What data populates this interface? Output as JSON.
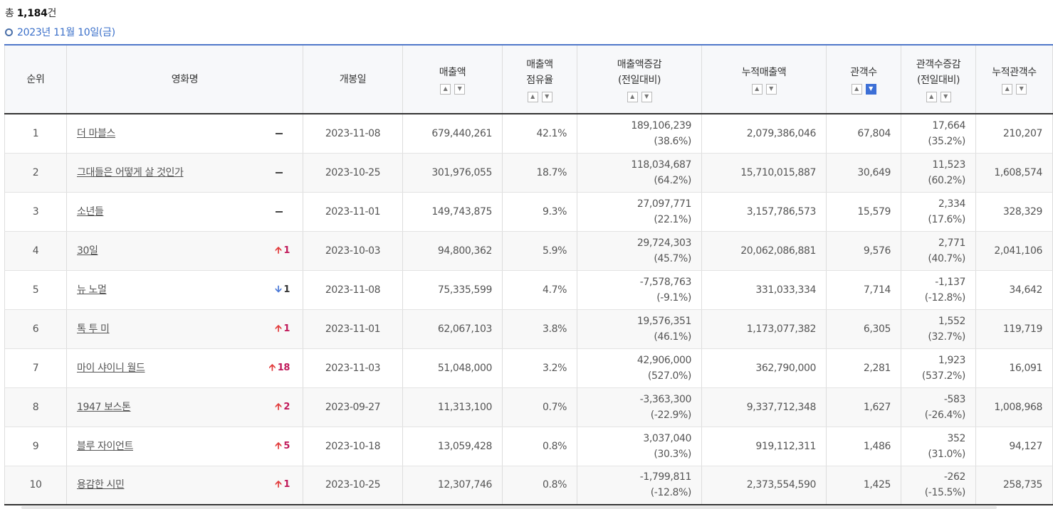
{
  "summary": {
    "prefix": "총 ",
    "count": "1,184",
    "suffix": "건"
  },
  "date_label": "2023년 11월 10일(금)",
  "headers": {
    "rank": "순위",
    "title": "영화명",
    "release": "개봉일",
    "sales": "매출액",
    "share_1": "매출액",
    "share_2": "점유율",
    "sales_change_1": "매출액증감",
    "sales_change_2": "(전일대비)",
    "cum_sales": "누적매출액",
    "audience": "관객수",
    "aud_change_1": "관객수증감",
    "aud_change_2": "(전일대비)",
    "cum_audience": "누적관객수"
  },
  "rows": [
    {
      "rank": "1",
      "title": "더 마블스",
      "change_dir": "same",
      "change_val": "",
      "release": "2023-11-08",
      "sales": "679,440,261",
      "share": "42.1%",
      "sales_diff": "189,106,239",
      "sales_diff_pct": "(38.6%)",
      "cum_sales": "2,079,386,046",
      "audience": "67,804",
      "aud_diff": "17,664",
      "aud_diff_pct": "(35.2%)",
      "cum_audience": "210,207"
    },
    {
      "rank": "2",
      "title": "그대들은 어떻게 살 것인가",
      "change_dir": "same",
      "change_val": "",
      "release": "2023-10-25",
      "sales": "301,976,055",
      "share": "18.7%",
      "sales_diff": "118,034,687",
      "sales_diff_pct": "(64.2%)",
      "cum_sales": "15,710,015,887",
      "audience": "30,649",
      "aud_diff": "11,523",
      "aud_diff_pct": "(60.2%)",
      "cum_audience": "1,608,574"
    },
    {
      "rank": "3",
      "title": "소년들",
      "change_dir": "same",
      "change_val": "",
      "release": "2023-11-01",
      "sales": "149,743,875",
      "share": "9.3%",
      "sales_diff": "27,097,771",
      "sales_diff_pct": "(22.1%)",
      "cum_sales": "3,157,786,573",
      "audience": "15,579",
      "aud_diff": "2,334",
      "aud_diff_pct": "(17.6%)",
      "cum_audience": "328,329"
    },
    {
      "rank": "4",
      "title": "30일",
      "change_dir": "up",
      "change_val": "1",
      "release": "2023-10-03",
      "sales": "94,800,362",
      "share": "5.9%",
      "sales_diff": "29,724,303",
      "sales_diff_pct": "(45.7%)",
      "cum_sales": "20,062,086,881",
      "audience": "9,576",
      "aud_diff": "2,771",
      "aud_diff_pct": "(40.7%)",
      "cum_audience": "2,041,106"
    },
    {
      "rank": "5",
      "title": "뉴 노멀",
      "change_dir": "down",
      "change_val": "1",
      "release": "2023-11-08",
      "sales": "75,335,599",
      "share": "4.7%",
      "sales_diff": "-7,578,763",
      "sales_diff_pct": "(-9.1%)",
      "cum_sales": "331,033,334",
      "audience": "7,714",
      "aud_diff": "-1,137",
      "aud_diff_pct": "(-12.8%)",
      "cum_audience": "34,642"
    },
    {
      "rank": "6",
      "title": "톡 투 미",
      "change_dir": "up",
      "change_val": "1",
      "release": "2023-11-01",
      "sales": "62,067,103",
      "share": "3.8%",
      "sales_diff": "19,576,351",
      "sales_diff_pct": "(46.1%)",
      "cum_sales": "1,173,077,382",
      "audience": "6,305",
      "aud_diff": "1,552",
      "aud_diff_pct": "(32.7%)",
      "cum_audience": "119,719"
    },
    {
      "rank": "7",
      "title": "마이 샤이니 월드",
      "change_dir": "up",
      "change_val": "18",
      "release": "2023-11-03",
      "sales": "51,048,000",
      "share": "3.2%",
      "sales_diff": "42,906,000",
      "sales_diff_pct": "(527.0%)",
      "cum_sales": "362,790,000",
      "audience": "2,281",
      "aud_diff": "1,923",
      "aud_diff_pct": "(537.2%)",
      "cum_audience": "16,091"
    },
    {
      "rank": "8",
      "title": "1947 보스톤",
      "change_dir": "up",
      "change_val": "2",
      "release": "2023-09-27",
      "sales": "11,313,100",
      "share": "0.7%",
      "sales_diff": "-3,363,300",
      "sales_diff_pct": "(-22.9%)",
      "cum_sales": "9,337,712,348",
      "audience": "1,627",
      "aud_diff": "-583",
      "aud_diff_pct": "(-26.4%)",
      "cum_audience": "1,008,968"
    },
    {
      "rank": "9",
      "title": "블루 자이언트",
      "change_dir": "up",
      "change_val": "5",
      "release": "2023-10-18",
      "sales": "13,059,428",
      "share": "0.8%",
      "sales_diff": "3,037,040",
      "sales_diff_pct": "(30.3%)",
      "cum_sales": "919,112,311",
      "audience": "1,486",
      "aud_diff": "352",
      "aud_diff_pct": "(31.0%)",
      "cum_audience": "94,127"
    },
    {
      "rank": "10",
      "title": "용감한 시민",
      "change_dir": "up",
      "change_val": "1",
      "release": "2023-10-25",
      "sales": "12,307,746",
      "share": "0.8%",
      "sales_diff": "-1,799,811",
      "sales_diff_pct": "(-12.8%)",
      "cum_sales": "2,373,554,590",
      "audience": "1,425",
      "aud_diff": "-262",
      "aud_diff_pct": "(-15.5%)",
      "cum_audience": "258,735"
    }
  ],
  "sort_icons": {
    "asc": "sort-ascending-icon",
    "desc": "sort-descending-icon"
  },
  "active_sort": "audience-desc",
  "colors": {
    "accent": "#3c6fd6",
    "up": "#c0195a",
    "up_arrow": "#e23c3c",
    "down_arrow": "#4a78d6"
  }
}
